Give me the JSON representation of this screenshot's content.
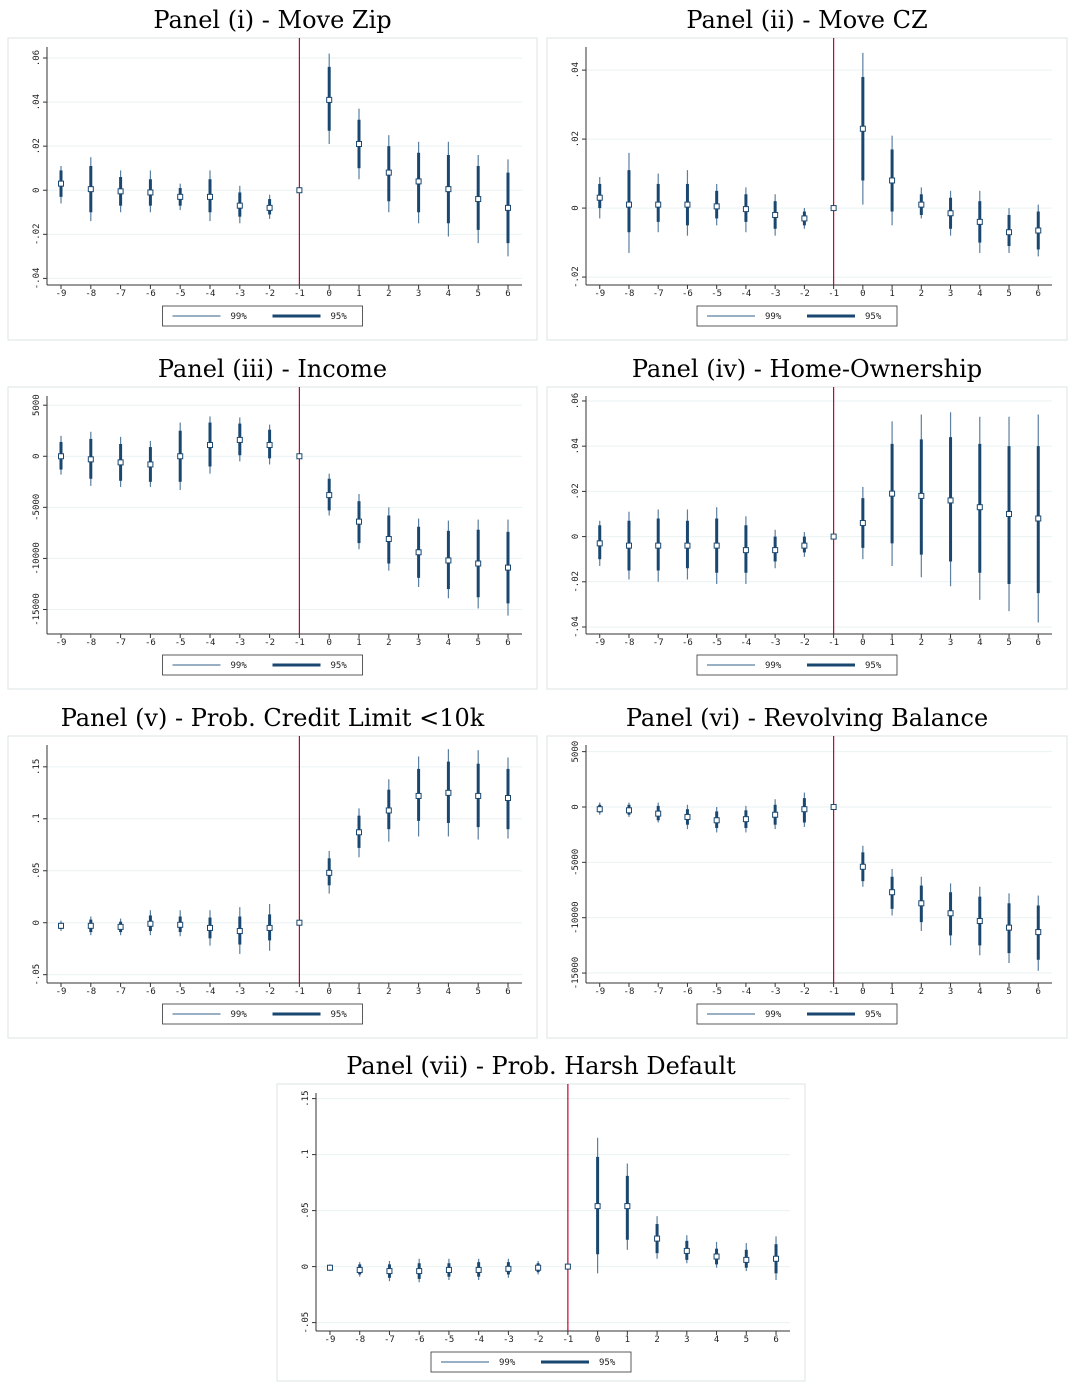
{
  "chart_data": [
    {
      "type": "coefplot",
      "title": "Panel (i) - Move Zip",
      "x": [
        -9,
        -8,
        -7,
        -6,
        -5,
        -4,
        -3,
        -2,
        -1,
        0,
        1,
        2,
        3,
        4,
        5,
        6
      ],
      "estimates": [
        0.003,
        0.0005,
        -0.0005,
        -0.001,
        -0.003,
        -0.003,
        -0.007,
        -0.008,
        0,
        0.041,
        0.021,
        0.008,
        0.004,
        0.0005,
        -0.004,
        -0.008
      ],
      "series": [
        {
          "name": "99%",
          "color": "#5b7fa0",
          "lower": [
            -0.006,
            -0.014,
            -0.01,
            -0.01,
            -0.009,
            -0.014,
            -0.015,
            -0.013,
            0,
            0.021,
            0.005,
            -0.01,
            -0.015,
            -0.021,
            -0.024,
            -0.03
          ],
          "upper": [
            0.011,
            0.015,
            0.009,
            0.009,
            0.003,
            0.009,
            0.002,
            -0.002,
            0,
            0.062,
            0.037,
            0.025,
            0.022,
            0.022,
            0.016,
            0.014
          ]
        },
        {
          "name": "95%",
          "color": "#1a476f",
          "lower": [
            -0.003,
            -0.01,
            -0.007,
            -0.007,
            -0.007,
            -0.01,
            -0.012,
            -0.011,
            0,
            0.027,
            0.01,
            -0.005,
            -0.01,
            -0.015,
            -0.018,
            -0.024
          ],
          "upper": [
            0.009,
            0.011,
            0.006,
            0.005,
            0.001,
            0.005,
            -0.001,
            -0.004,
            0,
            0.056,
            0.032,
            0.02,
            0.017,
            0.016,
            0.011,
            0.008
          ]
        }
      ],
      "xlim": [
        -9.47,
        6.47
      ],
      "xticks": [
        -9,
        -8,
        -7,
        -6,
        -5,
        -4,
        -3,
        -2,
        -1,
        0,
        1,
        2,
        3,
        4,
        5,
        6
      ],
      "ylim": [
        -0.043,
        0.065
      ],
      "yticks": [
        {
          "value": -0.04,
          "label": "-.04"
        },
        {
          "value": -0.02,
          "label": "-.02"
        },
        0,
        {
          "value": 0.02,
          "label": ".02"
        },
        {
          "value": 0.04,
          "label": ".04"
        },
        {
          "value": 0.06,
          "label": ".06"
        }
      ],
      "vline": -1,
      "vline_color": "#c10534",
      "grid": true
    },
    {
      "type": "coefplot",
      "title": "Panel (ii) - Move CZ",
      "x": [
        -9,
        -8,
        -7,
        -6,
        -5,
        -4,
        -3,
        -2,
        -1,
        0,
        1,
        2,
        3,
        4,
        5,
        6
      ],
      "estimates": [
        0.003,
        0.001,
        0.001,
        0.001,
        0.0005,
        -0.0003,
        -0.002,
        -0.003,
        0,
        0.023,
        0.008,
        0.001,
        -0.0015,
        -0.004,
        -0.007,
        -0.0065
      ],
      "series": [
        {
          "name": "99%",
          "color": "#5b7fa0",
          "lower": [
            -0.003,
            -0.013,
            -0.007,
            -0.008,
            -0.005,
            -0.007,
            -0.008,
            -0.006,
            0,
            0.001,
            -0.005,
            -0.003,
            -0.008,
            -0.013,
            -0.013,
            -0.014
          ],
          "upper": [
            0.009,
            0.016,
            0.01,
            0.011,
            0.007,
            0.006,
            0.004,
            0.0,
            0,
            0.045,
            0.021,
            0.006,
            0.005,
            0.005,
            0.0,
            0.001
          ]
        },
        {
          "name": "95%",
          "color": "#1a476f",
          "lower": [
            0.0,
            -0.007,
            -0.004,
            -0.005,
            -0.003,
            -0.004,
            -0.006,
            -0.005,
            0,
            0.008,
            -0.001,
            -0.002,
            -0.006,
            -0.01,
            -0.011,
            -0.012
          ],
          "upper": [
            0.007,
            0.011,
            0.007,
            0.007,
            0.005,
            0.004,
            0.002,
            -0.001,
            0,
            0.038,
            0.017,
            0.004,
            0.003,
            0.002,
            -0.002,
            -0.001
          ]
        }
      ],
      "xlim": [
        -9.47,
        6.47
      ],
      "xticks": [
        -9,
        -8,
        -7,
        -6,
        -5,
        -4,
        -3,
        -2,
        -1,
        0,
        1,
        2,
        3,
        4,
        5,
        6
      ],
      "ylim": [
        -0.0223,
        0.0467
      ],
      "yticks": [
        {
          "value": -0.02,
          "label": "-.02"
        },
        0,
        {
          "value": 0.02,
          "label": ".02"
        },
        {
          "value": 0.04,
          "label": ".04"
        }
      ],
      "vline": -1,
      "vline_color": "#c10534",
      "grid": true
    },
    {
      "type": "coefplot",
      "title": "Panel (iii) - Income",
      "x": [
        -9,
        -8,
        -7,
        -6,
        -5,
        -4,
        -3,
        -2,
        -1,
        0,
        1,
        2,
        3,
        4,
        5,
        6
      ],
      "estimates": [
        0,
        -300,
        -600,
        -800,
        0,
        1100,
        1600,
        1100,
        0,
        -3800,
        -6400,
        -8100,
        -9400,
        -10200,
        -10500,
        -10900
      ],
      "series": [
        {
          "name": "99%",
          "color": "#5b7fa0",
          "lower": [
            -1800,
            -2900,
            -3000,
            -3000,
            -3300,
            -1700,
            -500,
            -800,
            0,
            -5800,
            -9100,
            -11200,
            -12800,
            -13900,
            -14900,
            -15600
          ],
          "upper": [
            2000,
            2400,
            1900,
            1500,
            3300,
            3900,
            3800,
            3100,
            0,
            -1700,
            -3700,
            -5000,
            -6100,
            -6300,
            -6200,
            -6200
          ]
        },
        {
          "name": "95%",
          "color": "#1a476f",
          "lower": [
            -1300,
            -2200,
            -2400,
            -2500,
            -2500,
            -1000,
            100,
            -200,
            0,
            -5300,
            -8500,
            -10500,
            -11900,
            -13000,
            -13800,
            -14400
          ],
          "upper": [
            1400,
            1700,
            1200,
            900,
            2500,
            3300,
            3200,
            2600,
            0,
            -2200,
            -4400,
            -5800,
            -6900,
            -7300,
            -7200,
            -7400
          ]
        }
      ],
      "xlim": [
        -9.47,
        6.47
      ],
      "xticks": [
        -9,
        -8,
        -7,
        -6,
        -5,
        -4,
        -3,
        -2,
        -1,
        0,
        1,
        2,
        3,
        4,
        5,
        6
      ],
      "ylim": [
        -17400,
        5900
      ],
      "yticks": [
        -15000,
        -10000,
        -5000,
        0,
        5000
      ],
      "vline": -1,
      "vline_color": "#c10534",
      "grid": true
    },
    {
      "type": "coefplot",
      "title": "Panel (iv) - Home-Ownership",
      "x": [
        -9,
        -8,
        -7,
        -6,
        -5,
        -4,
        -3,
        -2,
        -1,
        0,
        1,
        2,
        3,
        4,
        5,
        6
      ],
      "estimates": [
        -0.003,
        -0.004,
        -0.004,
        -0.004,
        -0.004,
        -0.006,
        -0.006,
        -0.004,
        0,
        0.006,
        0.019,
        0.018,
        0.016,
        0.013,
        0.01,
        0.008
      ],
      "series": [
        {
          "name": "99%",
          "color": "#5b7fa0",
          "lower": [
            -0.013,
            -0.019,
            -0.02,
            -0.019,
            -0.021,
            -0.021,
            -0.014,
            -0.009,
            0,
            -0.01,
            -0.013,
            -0.018,
            -0.022,
            -0.028,
            -0.033,
            -0.038
          ],
          "upper": [
            0.007,
            0.011,
            0.012,
            0.012,
            0.013,
            0.009,
            0.003,
            0.002,
            0,
            0.022,
            0.051,
            0.054,
            0.055,
            0.053,
            0.053,
            0.054
          ]
        },
        {
          "name": "95%",
          "color": "#1a476f",
          "lower": [
            -0.01,
            -0.015,
            -0.015,
            -0.014,
            -0.016,
            -0.016,
            -0.011,
            -0.007,
            0,
            -0.005,
            -0.003,
            -0.008,
            -0.011,
            -0.016,
            -0.021,
            -0.025
          ],
          "upper": [
            0.005,
            0.007,
            0.008,
            0.007,
            0.008,
            0.005,
            0.0,
            0.0,
            0,
            0.017,
            0.041,
            0.043,
            0.044,
            0.041,
            0.04,
            0.04
          ]
        }
      ],
      "xlim": [
        -9.47,
        6.47
      ],
      "xticks": [
        -9,
        -8,
        -7,
        -6,
        -5,
        -4,
        -3,
        -2,
        -1,
        0,
        1,
        2,
        3,
        4,
        5,
        6
      ],
      "ylim": [
        -0.0431,
        0.0622
      ],
      "yticks": [
        {
          "value": -0.04,
          "label": "-.04"
        },
        {
          "value": -0.02,
          "label": "-.02"
        },
        0,
        {
          "value": 0.02,
          "label": ".02"
        },
        {
          "value": 0.04,
          "label": ".04"
        },
        {
          "value": 0.06,
          "label": ".06"
        }
      ],
      "vline": -1,
      "vline_color": "#c10534",
      "grid": true
    },
    {
      "type": "coefplot",
      "title": "Panel (v) - Prob. Credit Limit <10k",
      "x": [
        -9,
        -8,
        -7,
        -6,
        -5,
        -4,
        -3,
        -2,
        -1,
        0,
        1,
        2,
        3,
        4,
        5,
        6
      ],
      "estimates": [
        -0.003,
        -0.003,
        -0.004,
        -0.001,
        -0.002,
        -0.005,
        -0.008,
        -0.005,
        0,
        0.048,
        0.087,
        0.108,
        0.122,
        0.125,
        0.122,
        0.12
      ],
      "series": [
        {
          "name": "99%",
          "color": "#5b7fa0",
          "lower": [
            -0.008,
            -0.012,
            -0.012,
            -0.012,
            -0.013,
            -0.022,
            -0.03,
            -0.027,
            0,
            0.028,
            0.063,
            0.078,
            0.083,
            0.083,
            0.08,
            0.081
          ],
          "upper": [
            0.002,
            0.006,
            0.004,
            0.012,
            0.012,
            0.012,
            0.015,
            0.018,
            0,
            0.069,
            0.11,
            0.138,
            0.16,
            0.167,
            0.166,
            0.159
          ]
        },
        {
          "name": "95%",
          "color": "#1a476f",
          "lower": [
            -0.006,
            -0.009,
            -0.009,
            -0.008,
            -0.009,
            -0.015,
            -0.021,
            -0.017,
            0,
            0.036,
            0.072,
            0.09,
            0.098,
            0.096,
            0.092,
            0.09
          ],
          "upper": [
            0.0,
            0.003,
            0.001,
            0.007,
            0.006,
            0.005,
            0.006,
            0.008,
            0,
            0.062,
            0.103,
            0.128,
            0.148,
            0.155,
            0.153,
            0.148
          ]
        }
      ],
      "xlim": [
        -9.47,
        6.47
      ],
      "xticks": [
        -9,
        -8,
        -7,
        -6,
        -5,
        -4,
        -3,
        -2,
        -1,
        0,
        1,
        2,
        3,
        4,
        5,
        6
      ],
      "ylim": [
        -0.058,
        0.171
      ],
      "yticks": [
        {
          "value": -0.05,
          "label": "-.05"
        },
        0,
        {
          "value": 0.05,
          "label": ".05"
        },
        {
          "value": 0.1,
          "label": ".1"
        },
        {
          "value": 0.15,
          "label": ".15"
        }
      ],
      "vline": -1,
      "vline_color": "#c10534",
      "grid": true
    },
    {
      "type": "coefplot",
      "title": "Panel (vi) - Revolving Balance",
      "x": [
        -9,
        -8,
        -7,
        -6,
        -5,
        -4,
        -3,
        -2,
        -1,
        0,
        1,
        2,
        3,
        4,
        5,
        6
      ],
      "estimates": [
        -200,
        -300,
        -600,
        -900,
        -1200,
        -1100,
        -700,
        -200,
        0,
        -5400,
        -7700,
        -8700,
        -9600,
        -10300,
        -10900,
        -11300
      ],
      "series": [
        {
          "name": "99%",
          "color": "#5b7fa0",
          "lower": [
            -700,
            -900,
            -1400,
            -2000,
            -2300,
            -2300,
            -2000,
            -1800,
            0,
            -7200,
            -9800,
            -11200,
            -12500,
            -13400,
            -14100,
            -14800
          ],
          "upper": [
            400,
            400,
            400,
            200,
            0,
            100,
            700,
            1300,
            0,
            -3500,
            -5600,
            -6300,
            -6900,
            -7200,
            -7800,
            -8000
          ]
        },
        {
          "name": "95%",
          "color": "#1a476f",
          "lower": [
            -500,
            -700,
            -1200,
            -1600,
            -1900,
            -1900,
            -1600,
            -1400,
            0,
            -6700,
            -9200,
            -10400,
            -11600,
            -12500,
            -13200,
            -13800
          ],
          "upper": [
            200,
            200,
            100,
            -200,
            -400,
            -300,
            200,
            800,
            0,
            -4100,
            -6300,
            -7100,
            -7700,
            -8100,
            -8700,
            -8900
          ]
        }
      ],
      "xlim": [
        -9.47,
        6.47
      ],
      "xticks": [
        -9,
        -8,
        -7,
        -6,
        -5,
        -4,
        -3,
        -2,
        -1,
        0,
        1,
        2,
        3,
        4,
        5,
        6
      ],
      "ylim": [
        -15900,
        5600
      ],
      "yticks": [
        -15000,
        -10000,
        -5000,
        0,
        5000
      ],
      "vline": -1,
      "vline_color": "#c10534",
      "grid": true
    },
    {
      "type": "coefplot",
      "title": "Panel (vii) - Prob. Harsh Default",
      "x": [
        -9,
        -8,
        -7,
        -6,
        -5,
        -4,
        -3,
        -2,
        -1,
        0,
        1,
        2,
        3,
        4,
        5,
        6
      ],
      "estimates": [
        -0.001,
        -0.003,
        -0.004,
        -0.004,
        -0.003,
        -0.003,
        -0.002,
        -0.001,
        0,
        0.054,
        0.054,
        0.025,
        0.014,
        0.009,
        0.006,
        0.007
      ],
      "series": [
        {
          "name": "99%",
          "color": "#5b7fa0",
          "lower": [
            -0.004,
            -0.009,
            -0.013,
            -0.014,
            -0.012,
            -0.012,
            -0.01,
            -0.007,
            0,
            -0.006,
            0.015,
            0.007,
            0.003,
            -0.001,
            -0.004,
            -0.012
          ],
          "upper": [
            0.002,
            0.004,
            0.005,
            0.007,
            0.007,
            0.007,
            0.007,
            0.005,
            0,
            0.115,
            0.092,
            0.045,
            0.028,
            0.022,
            0.021,
            0.027
          ]
        },
        {
          "name": "95%",
          "color": "#1a476f",
          "lower": [
            -0.003,
            -0.007,
            -0.01,
            -0.011,
            -0.009,
            -0.009,
            -0.007,
            -0.005,
            0,
            0.011,
            0.024,
            0.012,
            0.006,
            0.002,
            -0.001,
            -0.006
          ],
          "upper": [
            0.001,
            0.002,
            0.002,
            0.003,
            0.003,
            0.004,
            0.004,
            0.003,
            0,
            0.098,
            0.081,
            0.038,
            0.023,
            0.016,
            0.015,
            0.02
          ]
        }
      ],
      "xlim": [
        -9.47,
        6.47
      ],
      "xticks": [
        -9,
        -8,
        -7,
        -6,
        -5,
        -4,
        -3,
        -2,
        -1,
        0,
        1,
        2,
        3,
        4,
        5,
        6
      ],
      "ylim": [
        -0.0575,
        0.155
      ],
      "yticks": [
        {
          "value": -0.05,
          "label": "-.05"
        },
        0,
        {
          "value": 0.05,
          "label": ".05"
        },
        {
          "value": 0.1,
          "label": ".1"
        },
        {
          "value": 0.15,
          "label": ".15"
        }
      ],
      "vline": -1,
      "vline_color": "#c10534",
      "grid": true
    }
  ]
}
